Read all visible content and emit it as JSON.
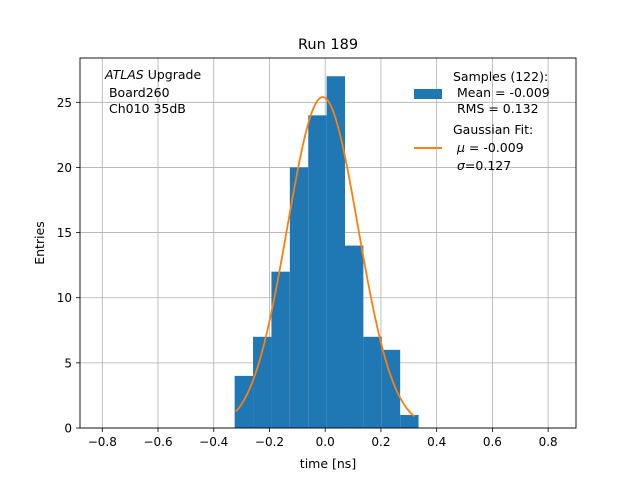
{
  "chart_data": {
    "type": "bar",
    "title": "Run 189",
    "xlabel": "time [ns]",
    "ylabel": "Entries",
    "xlim": [
      -0.88,
      0.9
    ],
    "ylim": [
      0,
      28.4
    ],
    "grid": true,
    "x_ticks": [
      -0.8,
      -0.6,
      -0.4,
      -0.2,
      0.0,
      0.2,
      0.4,
      0.6,
      0.8
    ],
    "x_tick_labels": [
      "−0.8",
      "−0.6",
      "−0.4",
      "−0.2",
      "0.0",
      "0.2",
      "0.4",
      "0.6",
      "0.8"
    ],
    "y_ticks": [
      0,
      5,
      10,
      15,
      20,
      25
    ],
    "y_tick_labels": [
      "0",
      "5",
      "10",
      "15",
      "20",
      "25"
    ],
    "annotation": {
      "italic": "ATLAS",
      "line1_rest": " Upgrade",
      "line2": " Board260",
      "line3": " Ch010 35dB"
    },
    "histogram": {
      "bin_edges": [
        -0.325,
        -0.259,
        -0.193,
        -0.127,
        -0.061,
        0.005,
        0.071,
        0.137,
        0.203,
        0.269,
        0.335
      ],
      "counts": [
        4,
        7,
        12,
        20,
        24,
        27,
        14,
        7,
        6,
        1
      ],
      "color": "#1f77b4"
    },
    "gaussian_fit": {
      "amplitude": 25.4,
      "mu": -0.009,
      "sigma": 0.127,
      "x_range": [
        -0.32,
        0.32
      ],
      "color": "#ff7f0e"
    },
    "legend": {
      "placement": "upper-right",
      "samples": {
        "line1": "Samples (122):",
        "line2": " Mean = -0.009",
        "line3": " RMS = 0.132"
      },
      "fit": {
        "line1": "Gaussian Fit:",
        "line2_sym": "μ",
        "line2_rest": " = -0.009",
        "line3_sym": "σ",
        "line3_rest": "=0.127"
      }
    }
  }
}
